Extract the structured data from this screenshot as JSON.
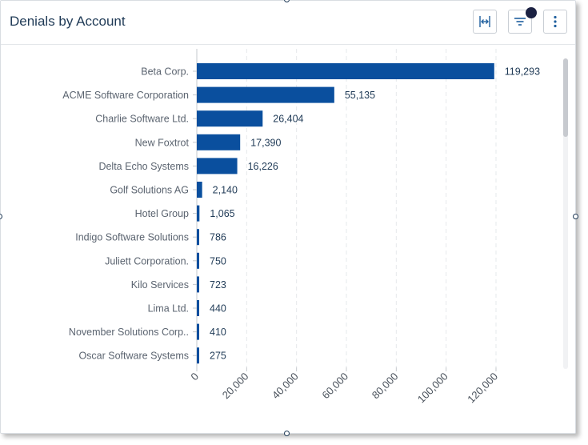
{
  "header": {
    "title": "Denials by Account"
  },
  "icons": {
    "expand": "expand-horizontal-icon",
    "filter": "filter-icon",
    "more": "more-vertical-icon"
  },
  "colors": {
    "bar": "#0a4f9e",
    "grid": "#e6e8eb",
    "badge": "#1b2142"
  },
  "chart_data": {
    "type": "bar",
    "orientation": "horizontal",
    "title": "Denials by Account",
    "xlabel": "",
    "ylabel": "",
    "xlim": [
      0,
      120000
    ],
    "xticks": [
      0,
      20000,
      40000,
      60000,
      80000,
      100000,
      120000
    ],
    "xtick_labels": [
      "0",
      "20,000",
      "40,000",
      "60,000",
      "80,000",
      "100,000",
      "120,000"
    ],
    "grid": true,
    "categories": [
      "Beta Corp.",
      "ACME Software Corporation",
      "Charlie Software Ltd.",
      "New Foxtrot",
      "Delta Echo Systems",
      "Golf Solutions AG",
      "Hotel Group",
      "Indigo Software Solutions",
      "Juliett Corporation.",
      "Kilo Services",
      "Lima Ltd.",
      "November Solutions Corp..",
      "Oscar Software Systems"
    ],
    "values": [
      119293,
      55135,
      26404,
      17390,
      16226,
      2140,
      1065,
      786,
      750,
      723,
      440,
      410,
      275
    ],
    "value_labels": [
      "119,293",
      "55,135",
      "26,404",
      "17,390",
      "16,226",
      "2,140",
      "1,065",
      "786",
      "750",
      "723",
      "440",
      "410",
      "275"
    ]
  }
}
